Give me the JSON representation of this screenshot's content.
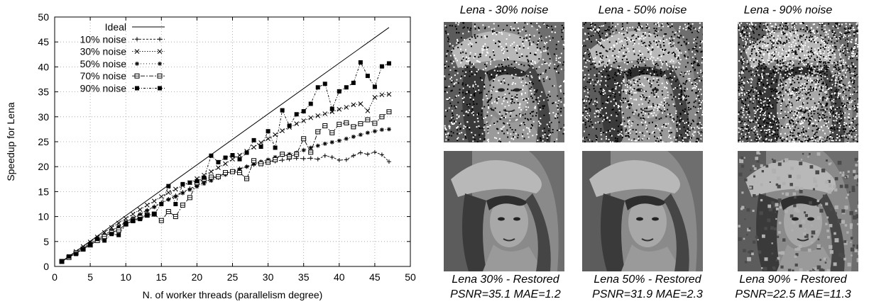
{
  "chart_data": {
    "type": "line",
    "title": "",
    "xlabel": "N. of worker threads (parallelism degree)",
    "ylabel": "Speedup for Lena",
    "xlim": [
      0,
      50
    ],
    "ylim": [
      0,
      50
    ],
    "xticks": [
      "0",
      "5",
      "10",
      "15",
      "20",
      "25",
      "30",
      "35",
      "40",
      "45",
      "50"
    ],
    "yticks": [
      "0",
      "5",
      "10",
      "15",
      "20",
      "25",
      "30",
      "35",
      "40",
      "45",
      "50"
    ],
    "grid": true,
    "legend_position": "top-left",
    "ideal": {
      "name": "Ideal",
      "x": [
        1,
        47
      ],
      "y": [
        1,
        47.9
      ]
    },
    "series": [
      {
        "name": "10% noise",
        "marker": "plus",
        "dash": "3,2",
        "x": [
          1,
          2,
          3,
          4,
          5,
          6,
          7,
          8,
          9,
          10,
          11,
          12,
          13,
          14,
          15,
          16,
          17,
          18,
          19,
          20,
          21,
          22,
          23,
          24,
          25,
          26,
          27,
          28,
          29,
          30,
          31,
          32,
          33,
          34,
          35,
          36,
          37,
          38,
          39,
          40,
          41,
          42,
          43,
          44,
          45,
          46,
          47
        ],
        "y": [
          1,
          1.9,
          2.8,
          3.7,
          4.6,
          5.5,
          6.3,
          7.2,
          8.0,
          8.9,
          9.7,
          10.5,
          11.3,
          12.0,
          12.8,
          13.5,
          14.2,
          14.9,
          15.6,
          16.2,
          16.9,
          17.5,
          18.1,
          18.6,
          19.1,
          19.6,
          20.0,
          20.4,
          20.7,
          21.0,
          21.1,
          21.3,
          21.5,
          21.7,
          21.6,
          21.7,
          21.5,
          22.2,
          21.9,
          21.3,
          21.4,
          22.2,
          22.8,
          22.5,
          22.9,
          22.4,
          21.0
        ]
      },
      {
        "name": "30% noise",
        "marker": "x",
        "dash": "1.5,2",
        "x": [
          1,
          2,
          3,
          4,
          5,
          6,
          7,
          8,
          9,
          10,
          11,
          12,
          13,
          14,
          15,
          16,
          17,
          18,
          19,
          20,
          21,
          22,
          23,
          24,
          25,
          26,
          27,
          28,
          29,
          30,
          31,
          32,
          33,
          34,
          35,
          36,
          37,
          38,
          39,
          40,
          41,
          42,
          43,
          44,
          45,
          46,
          47
        ],
        "y": [
          1,
          2,
          3,
          4,
          4.9,
          5.9,
          6.8,
          7.8,
          8.7,
          9.6,
          10.5,
          11.4,
          12.3,
          13.1,
          14.0,
          14.8,
          15.5,
          16.2,
          16.8,
          17.6,
          18.3,
          19.0,
          19.8,
          20.6,
          21.5,
          22.3,
          23.1,
          23.9,
          24.8,
          25.6,
          26.4,
          27.2,
          27.9,
          28.6,
          29.2,
          29.8,
          30.2,
          30.6,
          31.0,
          31.5,
          31.9,
          32.4,
          32.6,
          31.2,
          33.9,
          34.4,
          34.5
        ]
      },
      {
        "name": "50% noise",
        "marker": "star",
        "dash": "1,3",
        "x": [
          1,
          2,
          3,
          4,
          5,
          6,
          7,
          8,
          9,
          10,
          11,
          12,
          13,
          14,
          15,
          16,
          17,
          18,
          19,
          20,
          21,
          22,
          23,
          24,
          25,
          26,
          27,
          28,
          29,
          30,
          31,
          32,
          33,
          34,
          35,
          36,
          37,
          38,
          39,
          40,
          41,
          42,
          43,
          44,
          45,
          46,
          47
        ],
        "y": [
          1,
          1.9,
          2.8,
          3.7,
          4.6,
          5.5,
          6.3,
          7.2,
          8.0,
          8.9,
          9.6,
          10.4,
          11.2,
          11.9,
          12.6,
          13.4,
          14.0,
          14.7,
          15.4,
          16.0,
          16.6,
          17.2,
          17.8,
          18.4,
          19.0,
          19.5,
          20.0,
          20.5,
          21.0,
          21.4,
          21.9,
          22.3,
          22.5,
          22.8,
          23.3,
          23.8,
          24.2,
          24.6,
          24.9,
          25.2,
          25.6,
          26.0,
          26.4,
          26.8,
          27.1,
          27.4,
          27.5
        ]
      },
      {
        "name": "70% noise",
        "marker": "square",
        "dash": "6,2,2,2",
        "x": [
          1,
          2,
          3,
          4,
          5,
          6,
          7,
          8,
          9,
          10,
          11,
          12,
          13,
          14,
          15,
          16,
          17,
          18,
          19,
          20,
          21,
          22,
          23,
          24,
          25,
          26,
          27,
          28,
          29,
          30,
          31,
          32,
          33,
          34,
          35,
          36,
          37,
          38,
          39,
          40,
          41,
          42,
          43,
          44,
          45,
          46,
          47
        ],
        "y": [
          1,
          1.8,
          2.7,
          3.5,
          4.3,
          5.2,
          6.0,
          6.8,
          7.3,
          8.5,
          9.2,
          9.8,
          10.3,
          10.5,
          9.2,
          11.0,
          10.0,
          12.3,
          13.8,
          16.8,
          17.5,
          17.9,
          18.0,
          18.8,
          19.0,
          18.8,
          17.6,
          21.2,
          20.6,
          20.9,
          21.4,
          22.5,
          22.0,
          22.5,
          25.6,
          22.9,
          27.0,
          28.2,
          26.8,
          28.5,
          28.8,
          28.0,
          28.6,
          29.4,
          28.7,
          30.0,
          31.0
        ]
      },
      {
        "name": "90% noise",
        "marker": "filled-square",
        "dash": "3,2,1,2",
        "x": [
          1,
          2,
          3,
          4,
          5,
          6,
          7,
          8,
          9,
          10,
          11,
          12,
          13,
          14,
          15,
          16,
          17,
          18,
          19,
          20,
          21,
          22,
          23,
          24,
          25,
          26,
          27,
          28,
          29,
          30,
          31,
          32,
          33,
          34,
          35,
          36,
          37,
          38,
          39,
          40,
          41,
          42,
          43,
          44,
          45,
          46,
          47
        ],
        "y": [
          1,
          2,
          2.5,
          3.4,
          4.4,
          5.5,
          5.2,
          6.5,
          6.3,
          8.5,
          9.1,
          9.5,
          10.2,
          10.5,
          12.5,
          16.1,
          12.5,
          16.5,
          16.8,
          17.1,
          17.8,
          22.2,
          20.9,
          21.8,
          22.3,
          21.5,
          22.8,
          25.3,
          24.0,
          27.1,
          23.8,
          31.3,
          28.2,
          30.5,
          31.1,
          32.6,
          35.9,
          36.6,
          31.6,
          35.1,
          35.9,
          36.8,
          40.9,
          38.2,
          36.0,
          40.1,
          40.7
        ]
      }
    ]
  },
  "images": {
    "noisy": [
      {
        "title": "Lena - 30% noise",
        "density": 0.3
      },
      {
        "title": "Lena - 50% noise",
        "density": 0.5
      },
      {
        "title": "Lena - 90% noise",
        "density": 0.9
      }
    ],
    "restored": [
      {
        "title": "Lena 30% - Restored",
        "metrics": "PSNR=35.1 MAE=1.2"
      },
      {
        "title": "Lena 50% - Restored",
        "metrics": "PSNR=31.9 MAE=2.3"
      },
      {
        "title": "Lena 90% - Restored",
        "metrics": "PSNR=22.5 MAE=11.3"
      }
    ]
  }
}
